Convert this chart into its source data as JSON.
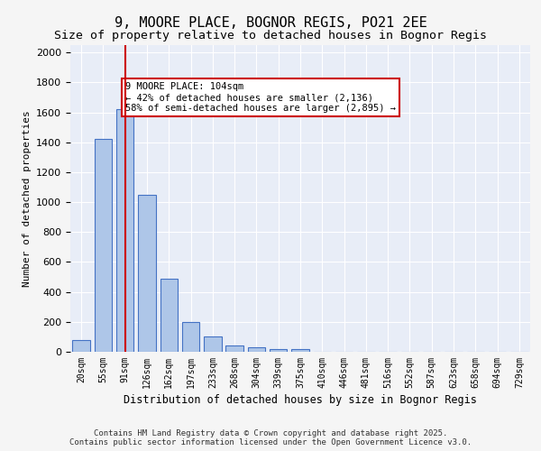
{
  "title": "9, MOORE PLACE, BOGNOR REGIS, PO21 2EE",
  "subtitle": "Size of property relative to detached houses in Bognor Regis",
  "xlabel": "Distribution of detached houses by size in Bognor Regis",
  "ylabel": "Number of detached properties",
  "bar_labels": [
    "20sqm",
    "55sqm",
    "91sqm",
    "126sqm",
    "162sqm",
    "197sqm",
    "233sqm",
    "268sqm",
    "304sqm",
    "339sqm",
    "375sqm",
    "410sqm",
    "446sqm",
    "481sqm",
    "516sqm",
    "552sqm",
    "587sqm",
    "623sqm",
    "658sqm",
    "694sqm",
    "729sqm"
  ],
  "bar_values": [
    80,
    1420,
    1620,
    1050,
    490,
    200,
    105,
    40,
    30,
    20,
    20,
    0,
    0,
    0,
    0,
    0,
    0,
    0,
    0,
    0,
    0
  ],
  "bar_color": "#aec6e8",
  "bar_edge_color": "#4472c4",
  "red_line_x": 2.0,
  "annotation_text": "9 MOORE PLACE: 104sqm\n← 42% of detached houses are smaller (2,136)\n58% of semi-detached houses are larger (2,895) →",
  "annotation_box_color": "#ffffff",
  "annotation_border_color": "#cc0000",
  "ylim": [
    0,
    2050
  ],
  "yticks": [
    0,
    200,
    400,
    600,
    800,
    1000,
    1200,
    1400,
    1600,
    1800,
    2000
  ],
  "background_color": "#e8edf7",
  "grid_color": "#ffffff",
  "footer_line1": "Contains HM Land Registry data © Crown copyright and database right 2025.",
  "footer_line2": "Contains public sector information licensed under the Open Government Licence v3.0."
}
